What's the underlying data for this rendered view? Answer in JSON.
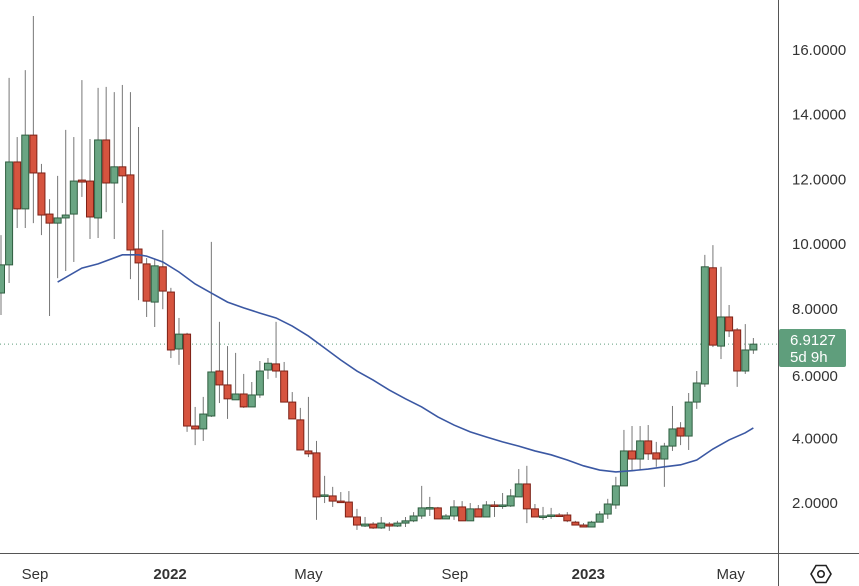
{
  "chart_data": {
    "type": "candlestick",
    "title": "",
    "xlabel": "",
    "ylabel": "",
    "ylim": [
      0.9,
      17.3
    ],
    "grid": false,
    "y_ticks": [
      {
        "value": 2,
        "label": "2.0000"
      },
      {
        "value": 4,
        "label": "4.0000"
      },
      {
        "value": 6,
        "label": "6.0000"
      },
      {
        "value": 8,
        "label": "8.0000"
      },
      {
        "value": 10,
        "label": "10.0000"
      },
      {
        "value": 12,
        "label": "12.0000"
      },
      {
        "value": 14,
        "label": "14.0000"
      },
      {
        "value": 16,
        "label": "16.0000"
      }
    ],
    "x_ticks": [
      {
        "index": 4.2,
        "label": "Sep",
        "bold": false
      },
      {
        "index": 20.9,
        "label": "2022",
        "bold": true
      },
      {
        "index": 38,
        "label": "May",
        "bold": false
      },
      {
        "index": 56.1,
        "label": "Sep",
        "bold": false
      },
      {
        "index": 72.6,
        "label": "2023",
        "bold": true
      },
      {
        "index": 90.2,
        "label": "May",
        "bold": false
      }
    ],
    "last_price": {
      "value": 6.9127,
      "label": "6.9127",
      "countdown": "5d 9h"
    },
    "colors": {
      "up": "#6aa583",
      "up_border": "#2f5e40",
      "down": "#d6543f",
      "down_border": "#7d2116",
      "wick": "#777777",
      "ma": "#3b58a3",
      "label_bg": "#5f9e7c"
    },
    "candles": [
      [
        8.49,
        10.28,
        7.81,
        9.36
      ],
      [
        9.36,
        15.14,
        8.8,
        12.54
      ],
      [
        12.54,
        13.31,
        10.5,
        11.09
      ],
      [
        11.09,
        15.38,
        10.5,
        13.37
      ],
      [
        13.37,
        17.05,
        10.65,
        12.2
      ],
      [
        12.2,
        12.48,
        10.28,
        10.9
      ],
      [
        10.93,
        11.39,
        7.78,
        10.65
      ],
      [
        10.65,
        12.11,
        8.95,
        10.81
      ],
      [
        10.81,
        13.53,
        9.17,
        10.9
      ],
      [
        10.93,
        13.31,
        9.45,
        11.95
      ],
      [
        11.98,
        15.07,
        11.46,
        11.92
      ],
      [
        11.95,
        13.25,
        10.16,
        10.84
      ],
      [
        10.81,
        14.83,
        10.19,
        13.22
      ],
      [
        13.22,
        14.86,
        10.99,
        11.89
      ],
      [
        11.89,
        14.7,
        10.16,
        12.39
      ],
      [
        12.39,
        14.92,
        11.27,
        12.11
      ],
      [
        12.14,
        14.7,
        8.92,
        9.82
      ],
      [
        9.85,
        13.62,
        8.27,
        9.42
      ],
      [
        9.39,
        9.57,
        7.75,
        8.24
      ],
      [
        8.21,
        9.54,
        7.44,
        9.33
      ],
      [
        9.3,
        10.44,
        7.99,
        8.55
      ],
      [
        8.52,
        8.65,
        6.48,
        6.73
      ],
      [
        6.76,
        7.72,
        6.27,
        7.22
      ],
      [
        7.22,
        7.26,
        4.2,
        4.38
      ],
      [
        4.38,
        4.97,
        3.79,
        4.29
      ],
      [
        4.29,
        5.28,
        3.92,
        4.75
      ],
      [
        4.69,
        10.07,
        4.66,
        6.05
      ],
      [
        6.08,
        7.6,
        5.09,
        5.65
      ],
      [
        5.65,
        6.85,
        4.6,
        5.22
      ],
      [
        5.19,
        6.64,
        5.19,
        5.37
      ],
      [
        5.37,
        5.99,
        4.94,
        4.97
      ],
      [
        4.97,
        5.74,
        4.97,
        5.34
      ],
      [
        5.34,
        6.39,
        5.25,
        6.08
      ],
      [
        6.11,
        6.48,
        5.83,
        6.32
      ],
      [
        6.3,
        7.6,
        5.87,
        6.08
      ],
      [
        6.08,
        6.36,
        5.12,
        5.12
      ],
      [
        5.12,
        5.43,
        4.6,
        4.6
      ],
      [
        4.57,
        4.94,
        3.64,
        3.64
      ],
      [
        3.61,
        5.28,
        3.42,
        3.52
      ],
      [
        3.55,
        3.92,
        1.48,
        2.19
      ],
      [
        2.22,
        2.84,
        2.0,
        2.25
      ],
      [
        2.22,
        2.5,
        1.88,
        2.06
      ],
      [
        2.06,
        2.34,
        2.03,
        2.03
      ],
      [
        2.03,
        2.37,
        1.57,
        1.57
      ],
      [
        1.57,
        1.82,
        1.17,
        1.32
      ],
      [
        1.29,
        1.57,
        1.26,
        1.35
      ],
      [
        1.35,
        1.41,
        1.2,
        1.23
      ],
      [
        1.23,
        1.57,
        1.2,
        1.38
      ],
      [
        1.35,
        1.41,
        1.14,
        1.29
      ],
      [
        1.29,
        1.45,
        1.26,
        1.38
      ],
      [
        1.38,
        1.57,
        1.26,
        1.45
      ],
      [
        1.45,
        1.72,
        1.41,
        1.6
      ],
      [
        1.6,
        2.53,
        1.51,
        1.85
      ],
      [
        1.84,
        2.19,
        1.6,
        1.86
      ],
      [
        1.85,
        1.88,
        1.51,
        1.51
      ],
      [
        1.51,
        1.66,
        1.51,
        1.6
      ],
      [
        1.6,
        2.09,
        1.48,
        1.88
      ],
      [
        1.88,
        2.06,
        1.45,
        1.45
      ],
      [
        1.45,
        2.0,
        1.45,
        1.82
      ],
      [
        1.82,
        1.94,
        1.57,
        1.57
      ],
      [
        1.57,
        2.06,
        1.57,
        1.94
      ],
      [
        1.94,
        2.06,
        1.57,
        1.91
      ],
      [
        1.91,
        2.31,
        1.82,
        1.94
      ],
      [
        1.91,
        2.43,
        1.88,
        2.22
      ],
      [
        2.19,
        3.05,
        2.19,
        2.59
      ],
      [
        2.59,
        3.15,
        1.38,
        1.82
      ],
      [
        1.82,
        1.97,
        1.57,
        1.57
      ],
      [
        1.57,
        1.88,
        1.48,
        1.6
      ],
      [
        1.6,
        1.85,
        1.51,
        1.63
      ],
      [
        1.63,
        1.69,
        1.57,
        1.6
      ],
      [
        1.63,
        1.72,
        1.41,
        1.45
      ],
      [
        1.41,
        1.45,
        1.32,
        1.32
      ],
      [
        1.32,
        1.38,
        1.26,
        1.26
      ],
      [
        1.26,
        1.45,
        1.26,
        1.41
      ],
      [
        1.41,
        1.75,
        1.41,
        1.66
      ],
      [
        1.66,
        2.13,
        1.51,
        1.97
      ],
      [
        1.94,
        2.81,
        1.82,
        2.53
      ],
      [
        2.53,
        4.26,
        2.53,
        3.61
      ],
      [
        3.61,
        4.38,
        3.02,
        3.36
      ],
      [
        3.36,
        4.38,
        3.02,
        3.92
      ],
      [
        3.92,
        4.41,
        3.33,
        3.52
      ],
      [
        3.55,
        3.89,
        3.12,
        3.36
      ],
      [
        3.36,
        3.86,
        2.5,
        3.76
      ],
      [
        3.76,
        5.0,
        3.61,
        4.29
      ],
      [
        4.32,
        4.5,
        3.79,
        4.07
      ],
      [
        4.07,
        5.4,
        3.64,
        5.12
      ],
      [
        5.12,
        6.08,
        4.91,
        5.71
      ],
      [
        5.68,
        9.67,
        5.59,
        9.3
      ],
      [
        9.27,
        9.97,
        6.82,
        6.88
      ],
      [
        6.85,
        9.3,
        6.45,
        7.75
      ],
      [
        7.75,
        8.12,
        7.13,
        7.32
      ],
      [
        7.35,
        7.41,
        5.59,
        6.08
      ],
      [
        6.08,
        7.53,
        5.99,
        6.73
      ],
      [
        6.73,
        7.1,
        6.61,
        6.91
      ]
    ],
    "moving_average": [
      [
        7,
        8.83
      ],
      [
        10,
        9.26
      ],
      [
        12,
        9.39
      ],
      [
        15,
        9.67
      ],
      [
        17,
        9.67
      ],
      [
        18,
        9.63
      ],
      [
        20,
        9.45
      ],
      [
        22,
        9.14
      ],
      [
        24,
        8.77
      ],
      [
        26,
        8.49
      ],
      [
        28,
        8.21
      ],
      [
        30,
        8.03
      ],
      [
        32,
        7.87
      ],
      [
        34,
        7.72
      ],
      [
        36,
        7.47
      ],
      [
        38,
        7.16
      ],
      [
        40,
        6.79
      ],
      [
        42,
        6.42
      ],
      [
        44,
        6.08
      ],
      [
        46,
        5.8
      ],
      [
        48,
        5.49
      ],
      [
        50,
        5.22
      ],
      [
        52,
        4.97
      ],
      [
        54,
        4.66
      ],
      [
        56,
        4.41
      ],
      [
        58,
        4.2
      ],
      [
        60,
        4.04
      ],
      [
        62,
        3.89
      ],
      [
        64,
        3.76
      ],
      [
        66,
        3.61
      ],
      [
        68,
        3.49
      ],
      [
        70,
        3.33
      ],
      [
        72,
        3.15
      ],
      [
        74,
        3.02
      ],
      [
        76,
        2.96
      ],
      [
        78,
        3.0
      ],
      [
        80,
        3.05
      ],
      [
        82,
        3.12
      ],
      [
        84,
        3.18
      ],
      [
        86,
        3.33
      ],
      [
        88,
        3.67
      ],
      [
        90,
        3.95
      ],
      [
        92,
        4.17
      ],
      [
        93,
        4.32
      ]
    ]
  }
}
